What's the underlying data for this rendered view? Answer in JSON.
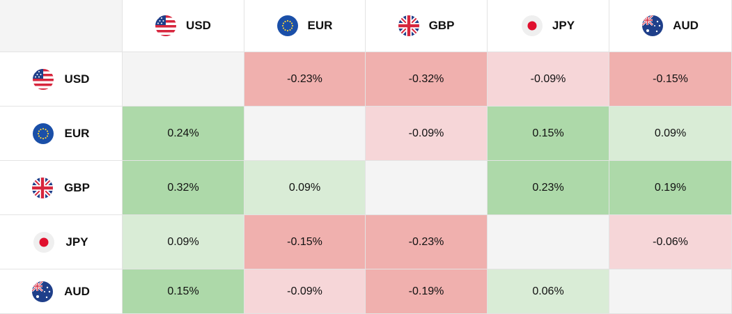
{
  "currencies": [
    "USD",
    "EUR",
    "GBP",
    "JPY",
    "AUD"
  ],
  "flags": [
    "us-flag",
    "eu-flag",
    "uk-flag",
    "japan-flag",
    "australia-flag"
  ],
  "colors": {
    "strong_positive": "#add9a9",
    "weak_positive": "#d9ecd6",
    "strong_negative": "#f0b0ae",
    "weak_negative": "#f6d6d8",
    "diagonal": "#f4f4f4"
  },
  "rows": [
    {
      "base": "USD",
      "cells": [
        {
          "value": "",
          "tone": "diagonal"
        },
        {
          "value": "-0.23%",
          "tone": "strong_negative"
        },
        {
          "value": "-0.32%",
          "tone": "strong_negative"
        },
        {
          "value": "-0.09%",
          "tone": "weak_negative"
        },
        {
          "value": "-0.15%",
          "tone": "strong_negative"
        }
      ]
    },
    {
      "base": "EUR",
      "cells": [
        {
          "value": "0.24%",
          "tone": "strong_positive"
        },
        {
          "value": "",
          "tone": "diagonal"
        },
        {
          "value": "-0.09%",
          "tone": "weak_negative"
        },
        {
          "value": "0.15%",
          "tone": "strong_positive"
        },
        {
          "value": "0.09%",
          "tone": "weak_positive"
        }
      ]
    },
    {
      "base": "GBP",
      "cells": [
        {
          "value": "0.32%",
          "tone": "strong_positive"
        },
        {
          "value": "0.09%",
          "tone": "weak_positive"
        },
        {
          "value": "",
          "tone": "diagonal"
        },
        {
          "value": "0.23%",
          "tone": "strong_positive"
        },
        {
          "value": "0.19%",
          "tone": "strong_positive"
        }
      ]
    },
    {
      "base": "JPY",
      "cells": [
        {
          "value": "0.09%",
          "tone": "weak_positive"
        },
        {
          "value": "-0.15%",
          "tone": "strong_negative"
        },
        {
          "value": "-0.23%",
          "tone": "strong_negative"
        },
        {
          "value": "",
          "tone": "diagonal"
        },
        {
          "value": "-0.06%",
          "tone": "weak_negative"
        }
      ]
    },
    {
      "base": "AUD",
      "cells": [
        {
          "value": "0.15%",
          "tone": "strong_positive"
        },
        {
          "value": "-0.09%",
          "tone": "weak_negative"
        },
        {
          "value": "-0.19%",
          "tone": "strong_negative"
        },
        {
          "value": "0.06%",
          "tone": "weak_positive"
        },
        {
          "value": "",
          "tone": "diagonal"
        }
      ]
    }
  ]
}
